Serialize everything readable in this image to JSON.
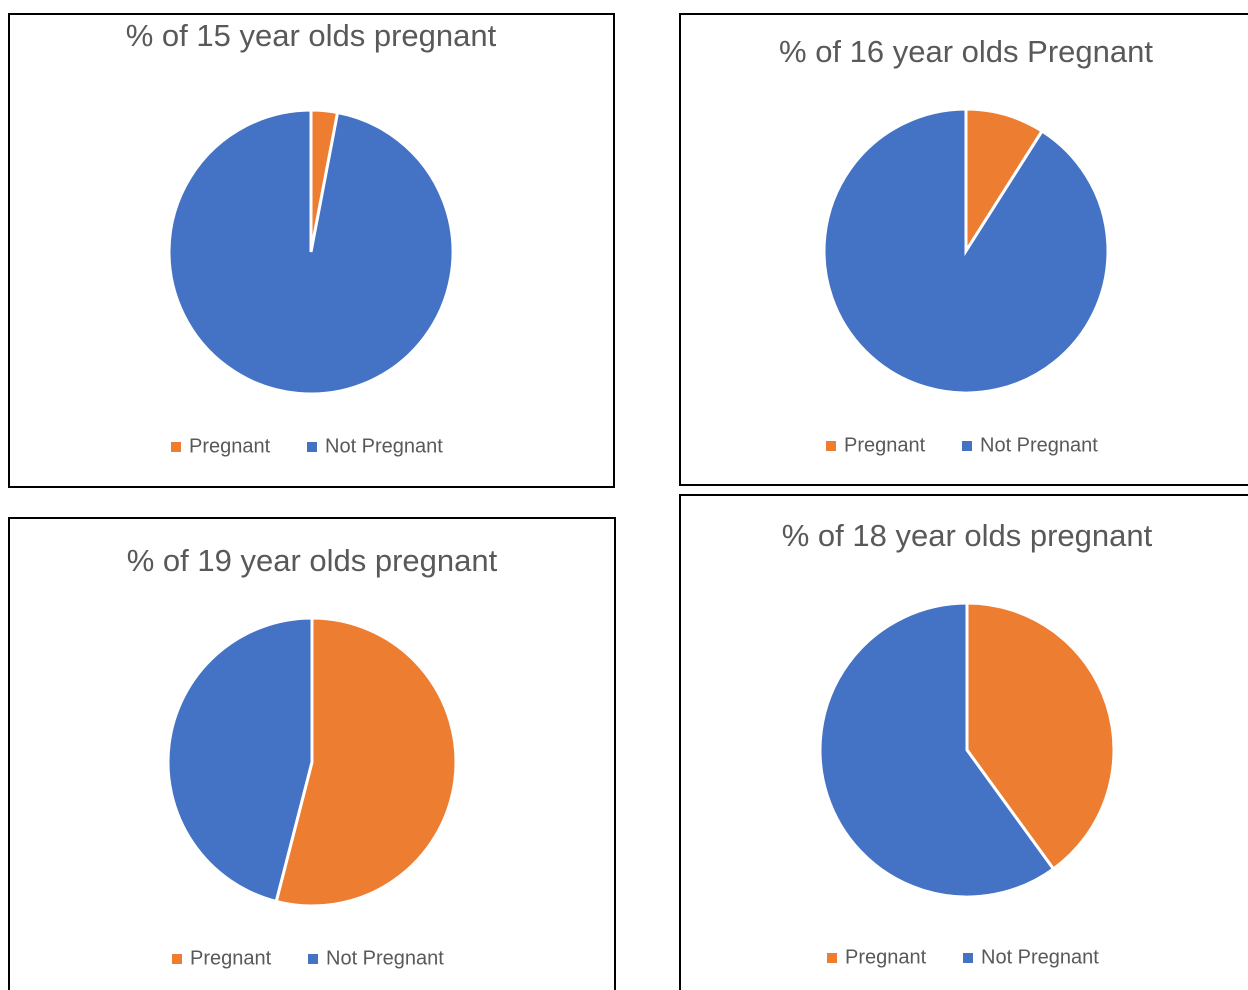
{
  "chart_data": [
    {
      "type": "pie",
      "title": "% of 15 year olds pregnant",
      "categories": [
        "Pregnant",
        "Not Pregnant"
      ],
      "values": [
        3,
        97
      ],
      "colors": [
        "#ed7d31",
        "#4472c4"
      ]
    },
    {
      "type": "pie",
      "title": "% of 16 year olds Pregnant",
      "categories": [
        "Pregnant",
        "Not Pregnant"
      ],
      "values": [
        9,
        91
      ],
      "colors": [
        "#ed7d31",
        "#4472c4"
      ]
    },
    {
      "type": "pie",
      "title": "% of 19 year olds pregnant",
      "categories": [
        "Pregnant",
        "Not Pregnant"
      ],
      "values": [
        54,
        46
      ],
      "colors": [
        "#ed7d31",
        "#4472c4"
      ]
    },
    {
      "type": "pie",
      "title": "% of 18 year olds pregnant",
      "categories": [
        "Pregnant",
        "Not Pregnant"
      ],
      "values": [
        40,
        60
      ],
      "colors": [
        "#ed7d31",
        "#4472c4"
      ]
    }
  ]
}
